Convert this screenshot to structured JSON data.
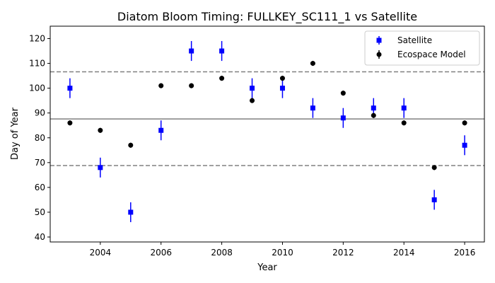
{
  "chart_data": {
    "type": "scatter",
    "title": "Diatom Bloom Timing: FULLKEY_SC111_1 vs Satellite",
    "xlabel": "Year",
    "ylabel": "Day of Year",
    "xlim": [
      2002.35,
      2016.65
    ],
    "ylim": [
      38,
      125
    ],
    "xticks": [
      2004,
      2006,
      2008,
      2010,
      2012,
      2014,
      2016
    ],
    "yticks": [
      40,
      50,
      60,
      70,
      80,
      90,
      100,
      110,
      120
    ],
    "grid": false,
    "legend_position": "top-right",
    "reference_lines": [
      {
        "y": 87.6,
        "style": "solid",
        "color": "#808080"
      },
      {
        "y": 106.6,
        "style": "dashed",
        "color": "#808080"
      },
      {
        "y": 68.8,
        "style": "dashed",
        "color": "#808080"
      }
    ],
    "series": [
      {
        "name": "Satellite",
        "color": "#0000ff",
        "marker": "square",
        "x": [
          2003,
          2004,
          2005,
          2006,
          2007,
          2008,
          2009,
          2010,
          2011,
          2012,
          2013,
          2014,
          2015,
          2016
        ],
        "y": [
          100,
          68,
          50,
          83,
          115,
          115,
          100,
          100,
          92,
          88,
          92,
          92,
          55,
          77
        ],
        "yerr": [
          4,
          4,
          4,
          4,
          4,
          4,
          4,
          4,
          4,
          4,
          4,
          4,
          4,
          4
        ]
      },
      {
        "name": "Ecospace Model",
        "color": "#000000",
        "marker": "circle",
        "x": [
          2003,
          2004,
          2005,
          2006,
          2007,
          2008,
          2009,
          2010,
          2011,
          2012,
          2013,
          2014,
          2015,
          2016
        ],
        "y": [
          86,
          83,
          77,
          101,
          101,
          104,
          95,
          104,
          110,
          98,
          89,
          86,
          68,
          86
        ],
        "yerr": [
          1,
          1,
          1,
          1,
          1,
          1,
          1,
          1,
          1,
          1,
          1,
          1,
          1,
          1
        ]
      }
    ]
  }
}
